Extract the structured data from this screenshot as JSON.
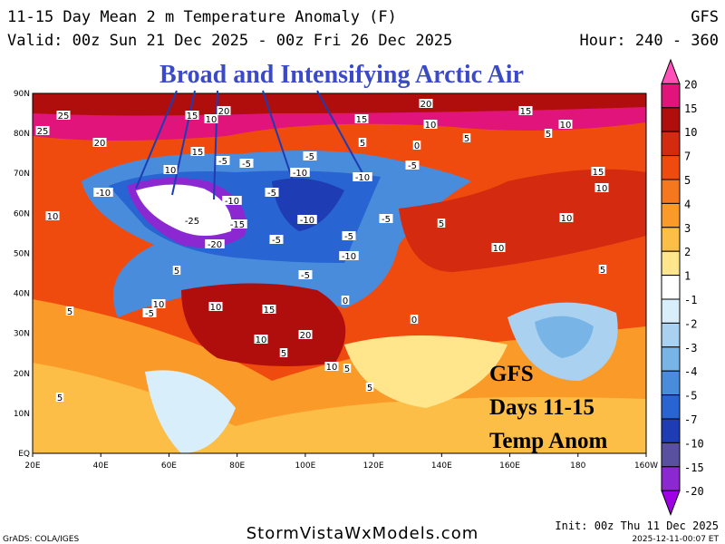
{
  "header": {
    "title": "11-15 Day Mean 2 m Temperature Anomaly (F)",
    "model": "GFS",
    "valid": "Valid: 00z Sun 21 Dec 2025 - 00z Fri 26 Dec 2025",
    "hour": "Hour: 240 - 360"
  },
  "annotation": "Broad and Intensifying Arctic Air",
  "overlay_text": [
    "GFS",
    "Days 11-15",
    "Temp Anom"
  ],
  "lon_labels": [
    "20E",
    "40E",
    "60E",
    "80E",
    "100E",
    "120E",
    "140E",
    "160E",
    "180",
    "160W"
  ],
  "lat_labels": [
    "EQ",
    "10N",
    "20N",
    "30N",
    "40N",
    "50N",
    "60N",
    "70N",
    "80N",
    "90N"
  ],
  "colorbar": {
    "labels": [
      "20",
      "15",
      "10",
      "7",
      "5",
      "4",
      "3",
      "2",
      "1",
      "-1",
      "-2",
      "-3",
      "-4",
      "-5",
      "-7",
      "-10",
      "-15",
      "-20"
    ],
    "colors": [
      "#ff4fb8",
      "#e0147a",
      "#b00d0d",
      "#d42a0f",
      "#f04b0f",
      "#f5781e",
      "#fa9a28",
      "#fcbe46",
      "#ffe68c",
      "#ffffff",
      "#d8eefa",
      "#aad2f0",
      "#78b4e6",
      "#4a8cdc",
      "#2864d2",
      "#1e3cb4",
      "#5a50a0",
      "#8c28d2",
      "#a000e6"
    ]
  },
  "contour_labels": [
    "25",
    "25",
    "20",
    "15",
    "10",
    "20",
    "20",
    "15",
    "10",
    "15",
    "5",
    "10",
    "5",
    "0",
    "5",
    "15",
    "10",
    "-5",
    "-5",
    "-5",
    "-10",
    "-5",
    "-10",
    "-5",
    "-10",
    "-10",
    "-25",
    "-15",
    "-20",
    "-10",
    "-5",
    "-5",
    "-10",
    "5",
    "10",
    "15",
    "10",
    "5",
    "10",
    "5",
    "10",
    "5",
    "10",
    "15",
    "10",
    "20",
    "5",
    "10",
    "5",
    "0",
    "-5",
    "5",
    "0",
    "-5",
    "-5",
    "10",
    "5"
  ],
  "footer": {
    "credit": "GrADS: COLA/IGES",
    "site": "StormVistaWxModels.com",
    "init": "Init: 00z Thu 11 Dec 2025",
    "stamp": "2025-12-11-00:07 ET"
  }
}
